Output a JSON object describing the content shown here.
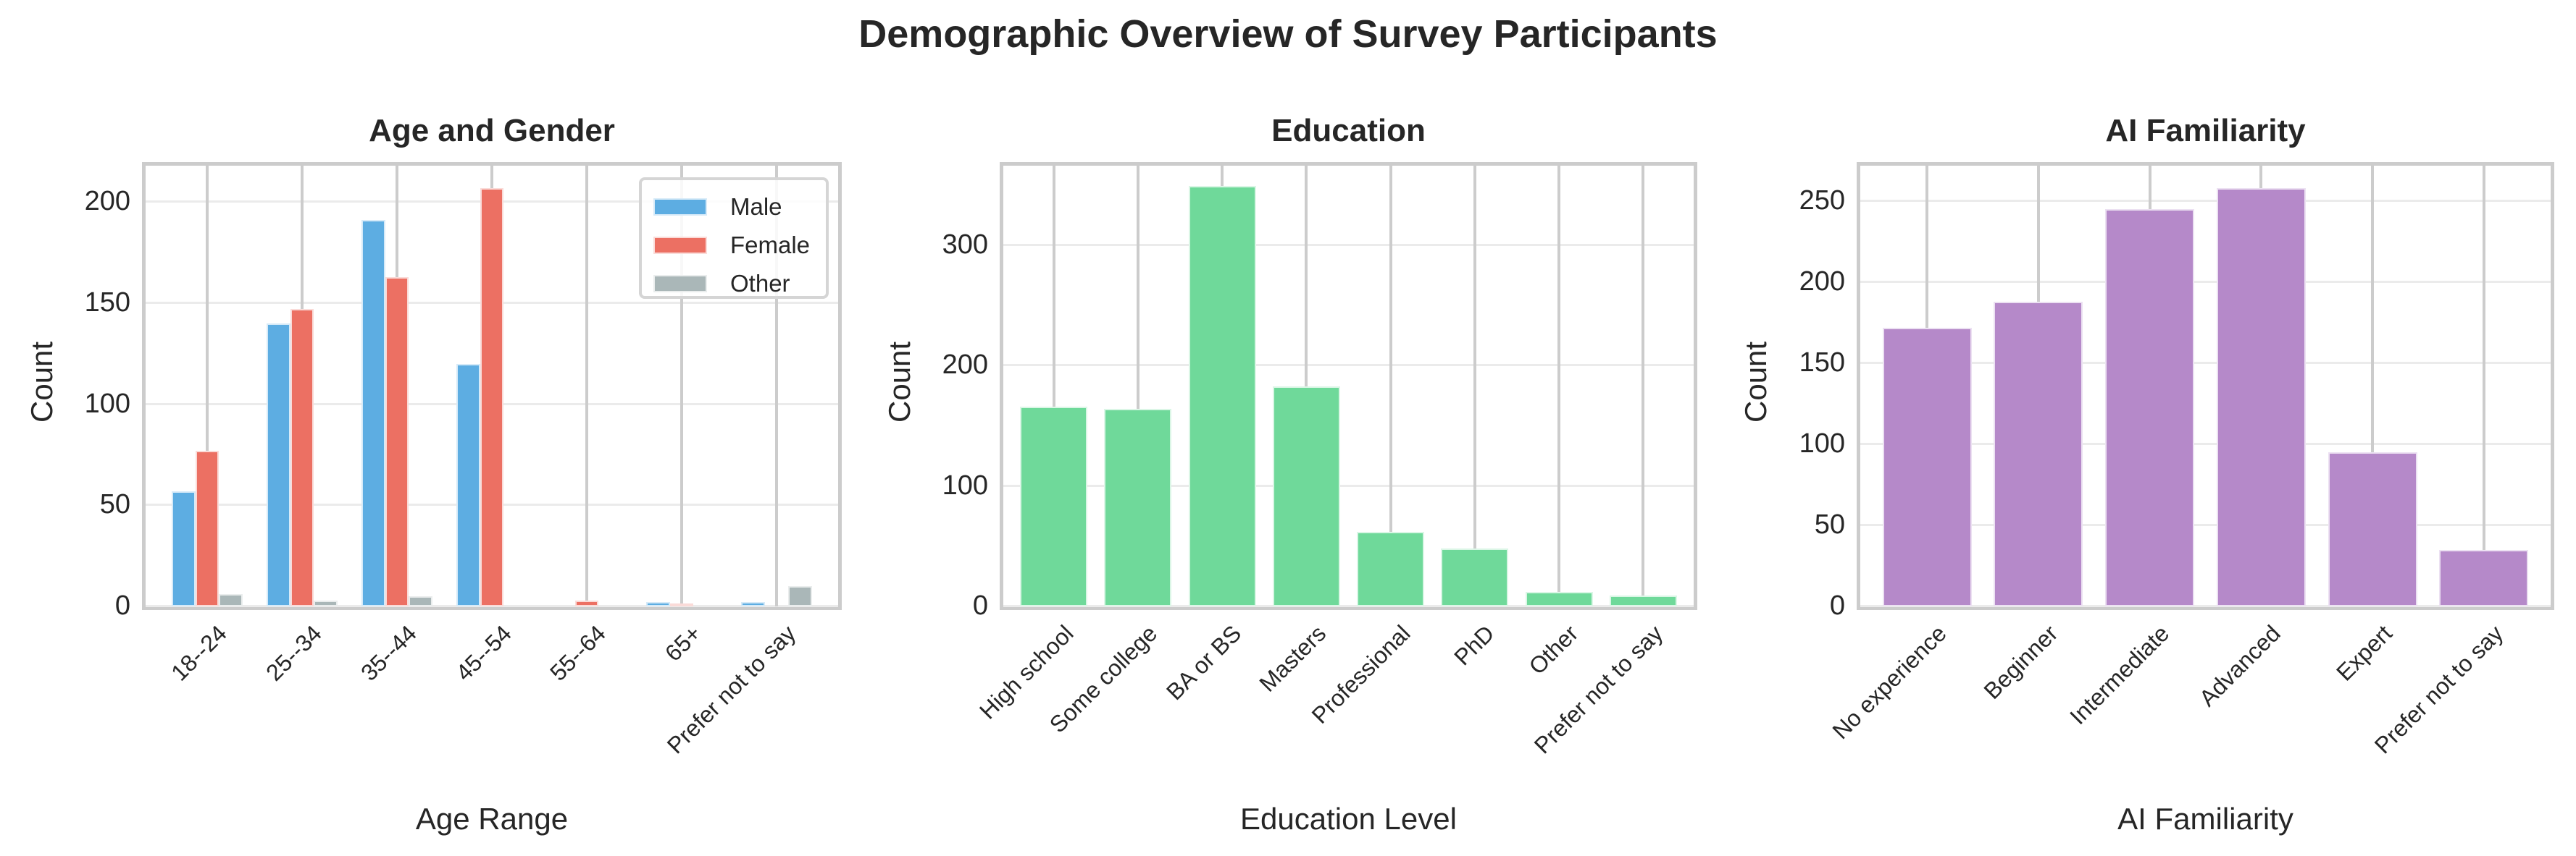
{
  "figure": {
    "title": "Demographic Overview of Survey Participants"
  },
  "panels": [
    {
      "title": "Age and Gender",
      "xlabel": "Age Range",
      "ylabel": "Count",
      "yticks": [
        "0",
        "50",
        "100",
        "150",
        "200"
      ],
      "legend": [
        {
          "label": "Male",
          "color": "#5DADE2"
        },
        {
          "label": "Female",
          "color": "#EC7063"
        },
        {
          "label": "Other",
          "color": "#AAB7B8"
        }
      ]
    },
    {
      "title": "Education",
      "xlabel": "Education Level",
      "ylabel": "Count",
      "yticks": [
        "0",
        "100",
        "200",
        "300"
      ]
    },
    {
      "title": "AI Familiarity",
      "xlabel": "AI Familiarity",
      "ylabel": "Count",
      "yticks": [
        "0",
        "50",
        "100",
        "150",
        "200",
        "250"
      ]
    }
  ],
  "chart_data": [
    {
      "type": "bar",
      "title": "Age and Gender",
      "xlabel": "Age Range",
      "ylabel": "Count",
      "categories": [
        "18--24",
        "25--34",
        "35--44",
        "45--54",
        "55--64",
        "65+",
        "Prefer not to say"
      ],
      "series": [
        {
          "name": "Male",
          "color": "#5DADE2",
          "values": [
            57,
            140,
            191,
            120,
            0,
            2,
            2
          ]
        },
        {
          "name": "Female",
          "color": "#EC7063",
          "values": [
            77,
            147,
            163,
            207,
            3,
            1,
            0
          ]
        },
        {
          "name": "Other",
          "color": "#AAB7B8",
          "values": [
            6,
            3,
            5,
            0,
            0,
            0,
            10
          ]
        }
      ],
      "ylim": [
        0,
        218
      ],
      "yticks": [
        0,
        50,
        100,
        150,
        200
      ],
      "grid": true,
      "legend_position": "upper right"
    },
    {
      "type": "bar",
      "title": "Education",
      "xlabel": "Education Level",
      "ylabel": "Count",
      "categories": [
        "High school",
        "Some college",
        "BA or BS",
        "Masters",
        "Professional",
        "PhD",
        "Other",
        "Prefer not to say"
      ],
      "values": [
        166,
        164,
        349,
        183,
        62,
        48,
        12,
        9
      ],
      "color": "#6FD99A",
      "ylim": [
        0,
        366
      ],
      "yticks": [
        0,
        100,
        200,
        300
      ],
      "grid": true
    },
    {
      "type": "bar",
      "title": "AI Familiarity",
      "xlabel": "AI Familiarity",
      "ylabel": "Count",
      "categories": [
        "No experience",
        "Beginner",
        "Intermediate",
        "Advanced",
        "Expert",
        "Prefer not to say"
      ],
      "values": [
        172,
        188,
        245,
        258,
        95,
        35
      ],
      "color": "#B589C9",
      "ylim": [
        0,
        272
      ],
      "yticks": [
        0,
        50,
        100,
        150,
        200,
        250
      ],
      "grid": true
    }
  ]
}
